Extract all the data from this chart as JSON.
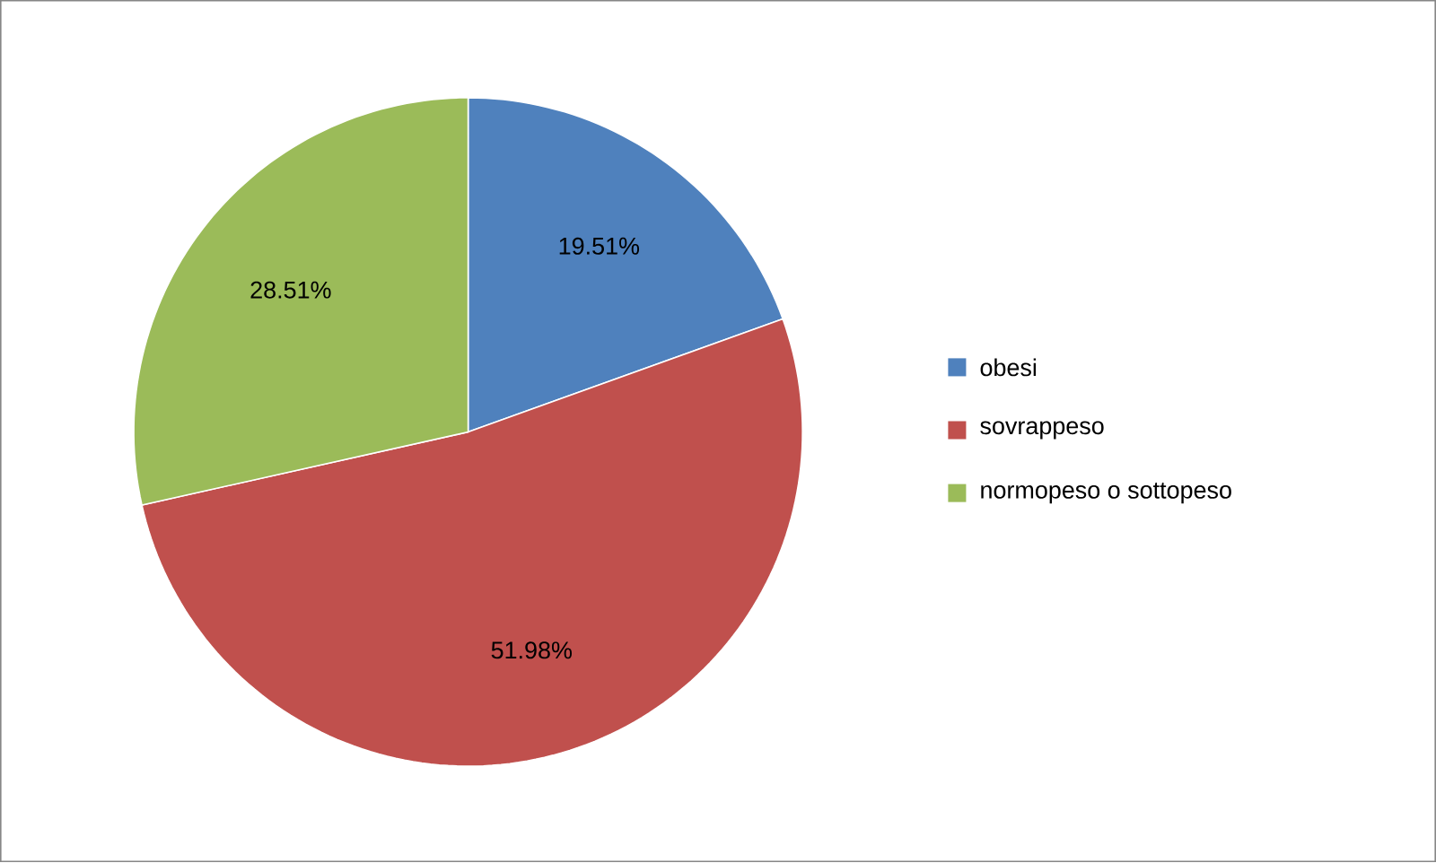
{
  "chart_data": {
    "type": "pie",
    "categories": [
      "obesi",
      "sovrappeso",
      "normopeso o sottopeso"
    ],
    "values": [
      19.51,
      51.98,
      28.51
    ],
    "colors": [
      "#4f81bd",
      "#c0504d",
      "#9bbb59"
    ],
    "value_labels": [
      "19.51%",
      "51.98%",
      "28.51%"
    ],
    "legend": "right"
  }
}
